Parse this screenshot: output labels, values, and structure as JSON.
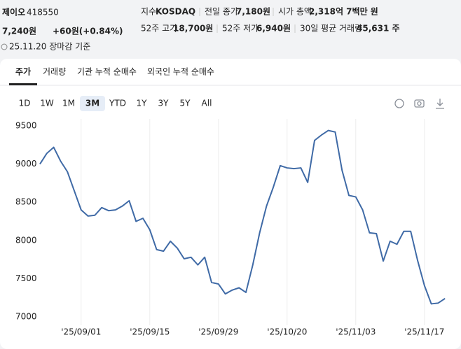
{
  "header": {
    "name": "제이오",
    "code": "418550",
    "price": "7,240원",
    "change": "+60원(+0.84%)",
    "as_of": "25.11.20 장마감 기준",
    "stats": [
      {
        "label": "지수",
        "value": "KOSDAQ"
      },
      {
        "label": "전일 종가",
        "value": "7,180원"
      },
      {
        "label": "시가 총액",
        "value": "2,318억 7백만 원"
      },
      {
        "label": "52주 고가",
        "value": "18,700원"
      },
      {
        "label": "52주 저가",
        "value": "6,940원"
      },
      {
        "label": "30일 평균 거래량",
        "value": "45,631 주"
      }
    ]
  },
  "tabs": [
    "주가",
    "거래량",
    "기관 누적 순매수",
    "외국인 누적 순매수"
  ],
  "active_tab": 0,
  "ranges": [
    {
      "label": "1D",
      "enabled": true
    },
    {
      "label": "1W",
      "enabled": true
    },
    {
      "label": "1M",
      "enabled": true
    },
    {
      "label": "3M",
      "enabled": true
    },
    {
      "label": "YTD",
      "enabled": true
    },
    {
      "label": "1Y",
      "enabled": true
    },
    {
      "label": "3Y",
      "enabled": false
    },
    {
      "label": "5Y",
      "enabled": false
    },
    {
      "label": "All",
      "enabled": true
    }
  ],
  "active_range": 3,
  "chart_data": {
    "type": "line",
    "color": "#3f6aa6",
    "grid": true,
    "categories": [
      null,
      null,
      null,
      null,
      null,
      null,
      "'25/09/01",
      null,
      null,
      null,
      null,
      null,
      null,
      null,
      null,
      null,
      "'25/09/15",
      null,
      null,
      null,
      null,
      null,
      null,
      null,
      null,
      null,
      "'25/09/29",
      null,
      null,
      null,
      null,
      null,
      null,
      null,
      null,
      null,
      "'25/10/20",
      null,
      null,
      null,
      null,
      null,
      null,
      null,
      null,
      null,
      "'25/11/03",
      null,
      null,
      null,
      null,
      null,
      null,
      null,
      null,
      null,
      "'25/11/17",
      null,
      null,
      null
    ],
    "values": [
      9000,
      9140,
      9220,
      9040,
      8900,
      8650,
      8400,
      8320,
      8330,
      8430,
      8390,
      8400,
      8450,
      8520,
      8250,
      8290,
      8140,
      7880,
      7860,
      7990,
      7900,
      7760,
      7780,
      7680,
      7780,
      7450,
      7430,
      7300,
      7350,
      7380,
      7320,
      7680,
      8100,
      8450,
      8700,
      8980,
      8950,
      8940,
      8950,
      8760,
      9310,
      9380,
      9440,
      9420,
      8920,
      8590,
      8570,
      8400,
      8100,
      8090,
      7730,
      7990,
      7950,
      8120,
      8120,
      7740,
      7410,
      7170,
      7180,
      7240
    ],
    "ylim": [
      7000,
      9500
    ],
    "yticks": [
      7000,
      7500,
      8000,
      8500,
      9000,
      9500
    ]
  }
}
